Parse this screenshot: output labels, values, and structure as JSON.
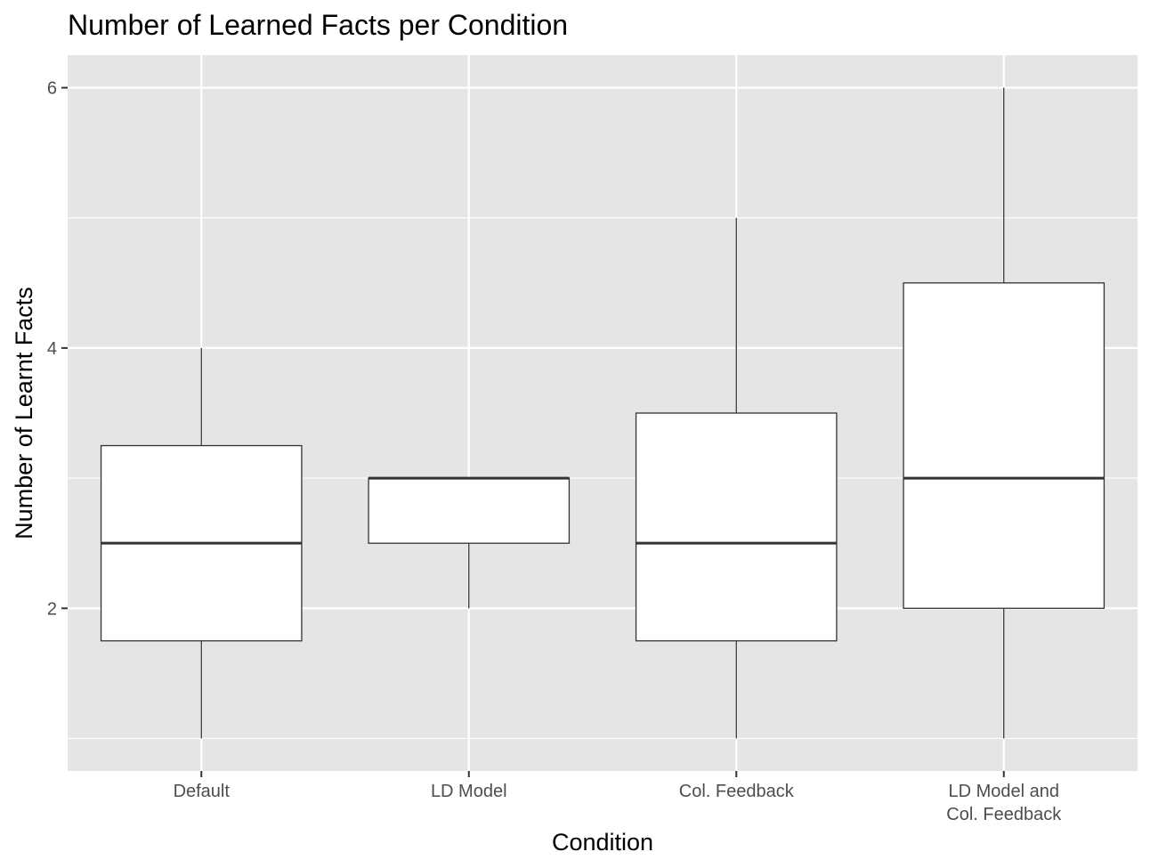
{
  "chart_data": {
    "type": "boxplot",
    "title": "Number of Learned Facts per Condition",
    "xlabel": "Condition",
    "ylabel": "Number of Learnt Facts",
    "ylim": [
      0.75,
      6.25
    ],
    "y_major_ticks": [
      2,
      4,
      6
    ],
    "y_minor_ticks": [
      1,
      3,
      5
    ],
    "grid": true,
    "legend": "none",
    "categories": [
      "Default",
      "LD Model",
      "Col. Feedback",
      "LD Model and\nCol. Feedback"
    ],
    "boxes": [
      {
        "category": "Default",
        "min": 1,
        "q1": 1.75,
        "median": 2.5,
        "q3": 3.25,
        "max": 4
      },
      {
        "category": "LD Model",
        "min": 2,
        "q1": 2.5,
        "median": 3,
        "q3": 3,
        "max": 3
      },
      {
        "category": "Col. Feedback",
        "min": 1,
        "q1": 1.75,
        "median": 2.5,
        "q3": 3.5,
        "max": 5
      },
      {
        "category": "LD Model and\nCol. Feedback",
        "min": 1,
        "q1": 2,
        "median": 3,
        "q3": 4.5,
        "max": 6
      }
    ],
    "colors": {
      "panel": "#e5e5e5",
      "grid": "#ffffff",
      "box_fill": "#ffffff",
      "box_line": "#333333",
      "tick_text": "#4d4d4d"
    }
  }
}
